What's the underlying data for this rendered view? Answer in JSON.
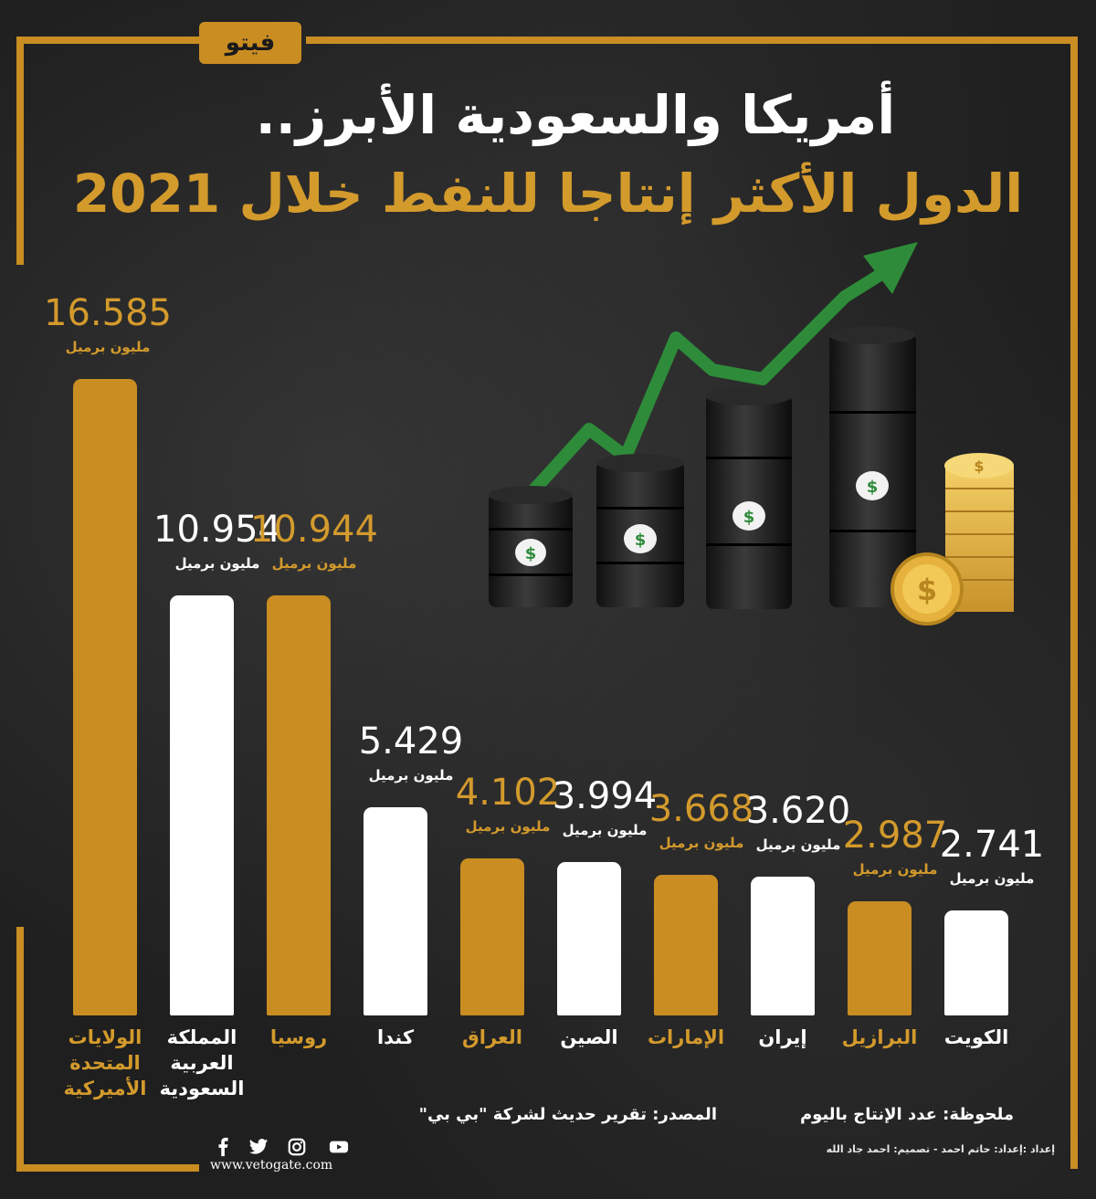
{
  "brand": {
    "logo_text": "فيتو"
  },
  "header": {
    "title_line1": "أمريكا والسعودية الأبرز..",
    "title_line2": "الدول الأكثر إنتاجا للنفط خلال 2021"
  },
  "chart_data": {
    "type": "bar",
    "categories": [
      "الولايات المتحدة الأميركية",
      "المملكة العربية السعودية",
      "روسيا",
      "كندا",
      "العراق",
      "الصين",
      "الإمارات",
      "إيران",
      "البرازيل",
      "الكويت"
    ],
    "category_lines": [
      [
        "الولايات",
        "المتحدة",
        "الأميركية"
      ],
      [
        "المملكة",
        "العربية",
        "السعودية"
      ],
      [
        "روسيا"
      ],
      [
        "كندا"
      ],
      [
        "العراق"
      ],
      [
        "الصين"
      ],
      [
        "الإمارات"
      ],
      [
        "إيران"
      ],
      [
        "البرازيل"
      ],
      [
        "الكويت"
      ]
    ],
    "values": [
      16.585,
      10.954,
      10.944,
      5.429,
      4.102,
      3.994,
      3.668,
      3.62,
      2.987,
      2.741
    ],
    "value_labels": [
      "16.585",
      "10.954",
      "10.944",
      "5.429",
      "4.102",
      "3.994",
      "3.668",
      "3.620",
      "2.987",
      "2.741"
    ],
    "unit_label": "مليون برميل",
    "bar_colors": [
      "#c98d22",
      "#ffffff",
      "#c98d22",
      "#ffffff",
      "#c98d22",
      "#ffffff",
      "#c98d22",
      "#ffffff",
      "#c98d22",
      "#ffffff"
    ],
    "title": "",
    "xlabel": "",
    "ylabel": "",
    "grid": false,
    "legend": "none"
  },
  "footer": {
    "note": "ملحوظة: عدد الإنتاج باليوم",
    "source": "المصدر: تقرير حديث لشركة \"بي بي\"",
    "credits": "إعداد :إعداد: حاتم احمد -   تصميم: احمد جاد الله",
    "website": "www.vetogate.com"
  },
  "icons": [
    "facebook-icon",
    "twitter-icon",
    "instagram-icon",
    "youtube-icon"
  ],
  "colors": {
    "gold": "#c98d22",
    "gold_text": "#d39a2c",
    "arrow_green": "#2e8b3a",
    "background": "#1f1f1f"
  }
}
